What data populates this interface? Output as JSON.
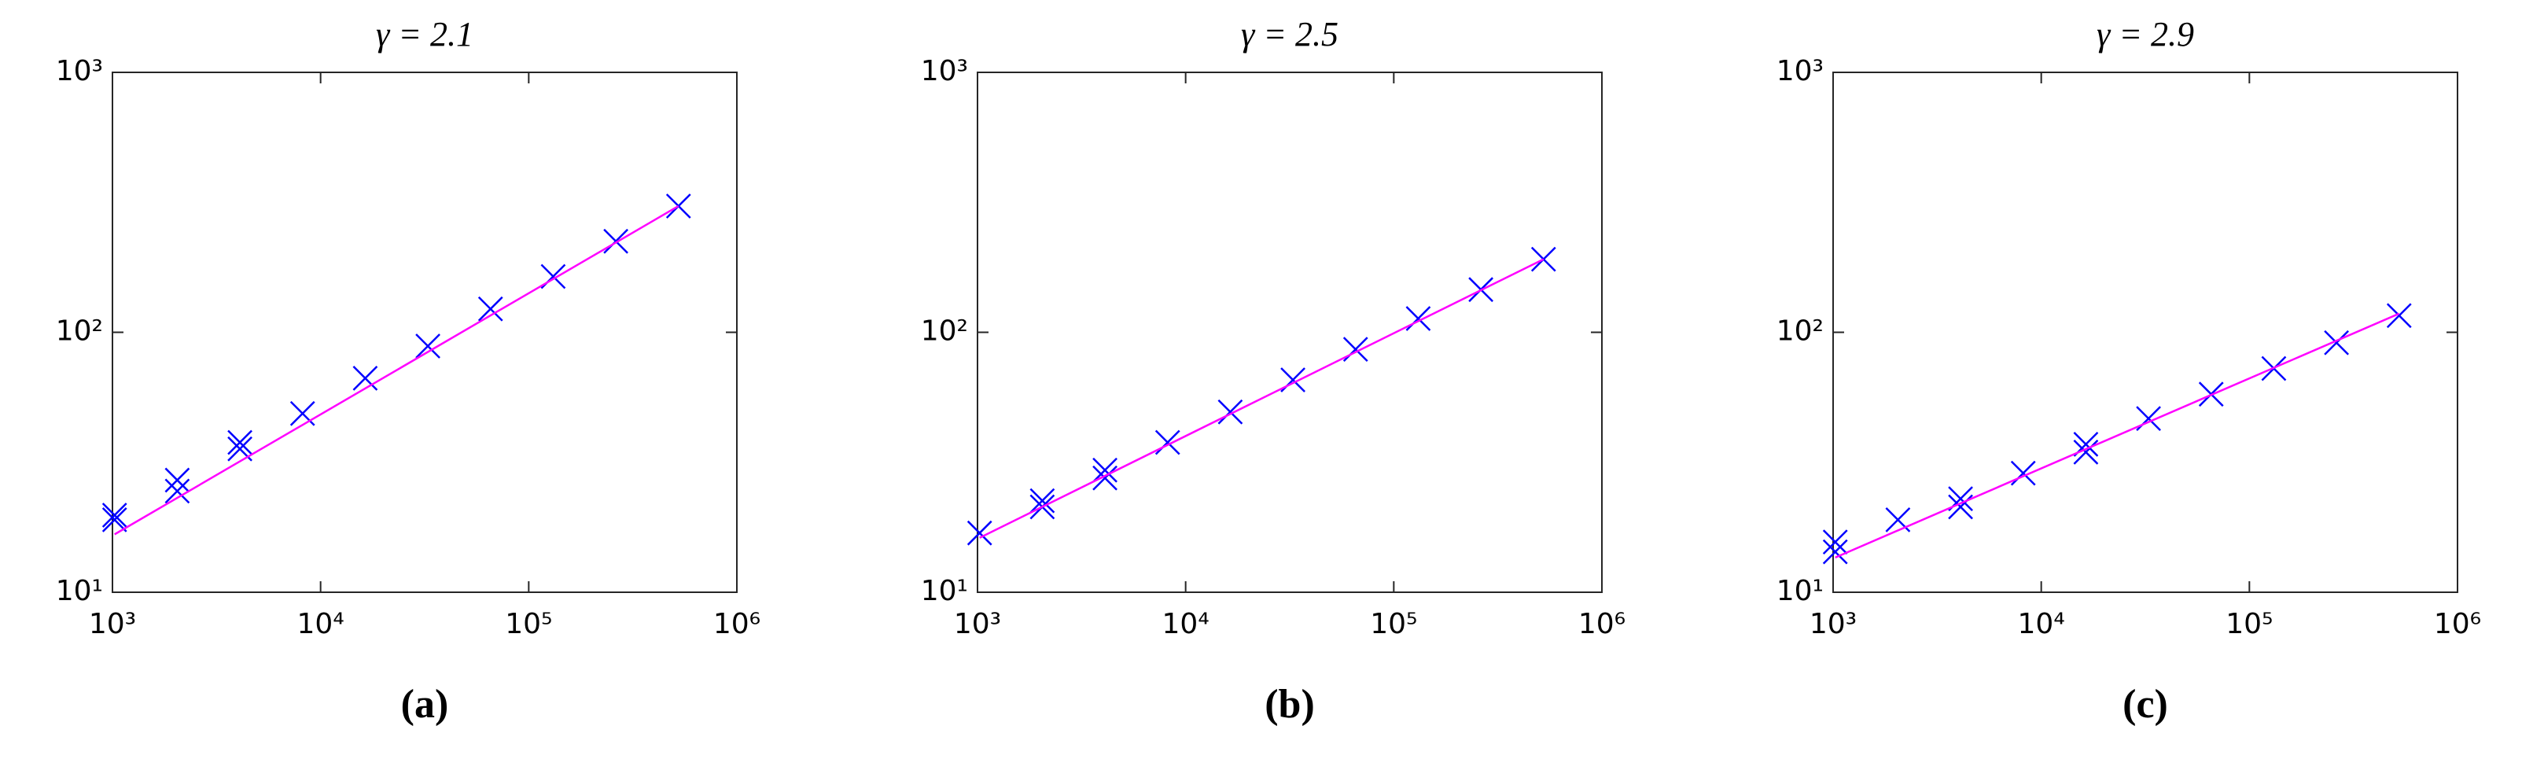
{
  "chart_data": [
    {
      "type": "scatter",
      "title": "γ = 2.1",
      "caption": "(a)",
      "log_x": true,
      "log_y": true,
      "xlim": [
        1000,
        1000000
      ],
      "ylim": [
        10,
        1000
      ],
      "xticks": [
        {
          "value": 1000,
          "label": "10³"
        },
        {
          "value": 10000,
          "label": "10⁴"
        },
        {
          "value": 100000,
          "label": "10⁵"
        },
        {
          "value": 1000000,
          "label": "10⁶"
        }
      ],
      "yticks": [
        {
          "value": 10,
          "label": "10¹"
        },
        {
          "value": 100,
          "label": "10²"
        },
        {
          "value": 1000,
          "label": "10³"
        }
      ],
      "series": [
        {
          "color": "#0000ff",
          "marker": "x",
          "x": [
            1024,
            1024,
            2048,
            2048,
            4096,
            4096,
            8192,
            16384,
            32768,
            65536,
            131072,
            262144,
            524288
          ],
          "values": [
            19.8,
            19,
            27,
            24.5,
            37.7,
            35.6,
            48.7,
            66.6,
            88.5,
            123,
            164,
            224,
            306
          ]
        },
        {
          "color": "#ff00ff",
          "marker": "line",
          "x": [
            1024,
            524288
          ],
          "values": [
            16.7,
            306
          ]
        }
      ]
    },
    {
      "type": "scatter",
      "title": "γ = 2.5",
      "caption": "(b)",
      "log_x": true,
      "log_y": true,
      "xlim": [
        1000,
        1000000
      ],
      "ylim": [
        10,
        1000
      ],
      "xticks": [
        {
          "value": 1000,
          "label": "10³"
        },
        {
          "value": 10000,
          "label": "10⁴"
        },
        {
          "value": 100000,
          "label": "10⁵"
        },
        {
          "value": 1000000,
          "label": "10⁶"
        }
      ],
      "yticks": [
        {
          "value": 10,
          "label": "10¹"
        },
        {
          "value": 100,
          "label": "10²"
        },
        {
          "value": 1000,
          "label": "10³"
        }
      ],
      "series": [
        {
          "color": "#0000ff",
          "marker": "x",
          "x": [
            1024,
            2048,
            2048,
            4096,
            4096,
            8192,
            16384,
            32768,
            65536,
            131072,
            262144,
            524288
          ],
          "values": [
            16.9,
            22.5,
            21.3,
            29.5,
            27.5,
            37.7,
            49.4,
            65.6,
            86,
            113,
            146,
            191
          ]
        },
        {
          "color": "#ff00ff",
          "marker": "line",
          "x": [
            1024,
            524288
          ],
          "values": [
            16.2,
            191
          ]
        }
      ]
    },
    {
      "type": "scatter",
      "title": "γ = 2.9",
      "caption": "(c)",
      "log_x": true,
      "log_y": true,
      "xlim": [
        1000,
        1000000
      ],
      "ylim": [
        10,
        1000
      ],
      "xticks": [
        {
          "value": 1000,
          "label": "10³"
        },
        {
          "value": 10000,
          "label": "10⁴"
        },
        {
          "value": 100000,
          "label": "10⁵"
        },
        {
          "value": 1000000,
          "label": "10⁶"
        }
      ],
      "yticks": [
        {
          "value": 10,
          "label": "10¹"
        },
        {
          "value": 100,
          "label": "10²"
        },
        {
          "value": 1000,
          "label": "10³"
        }
      ],
      "series": [
        {
          "color": "#0000ff",
          "marker": "x",
          "x": [
            1024,
            1024,
            2048,
            4096,
            4096,
            8192,
            16384,
            16384,
            32768,
            65536,
            131072,
            262144,
            524288
          ],
          "values": [
            15.6,
            14.3,
            19,
            22.9,
            21.3,
            28.7,
            37.1,
            34.6,
            46.6,
            57.8,
            72.6,
            91.2,
            116
          ]
        },
        {
          "color": "#ff00ff",
          "marker": "line",
          "x": [
            1024,
            524288
          ],
          "values": [
            13.6,
            118
          ]
        }
      ]
    }
  ]
}
